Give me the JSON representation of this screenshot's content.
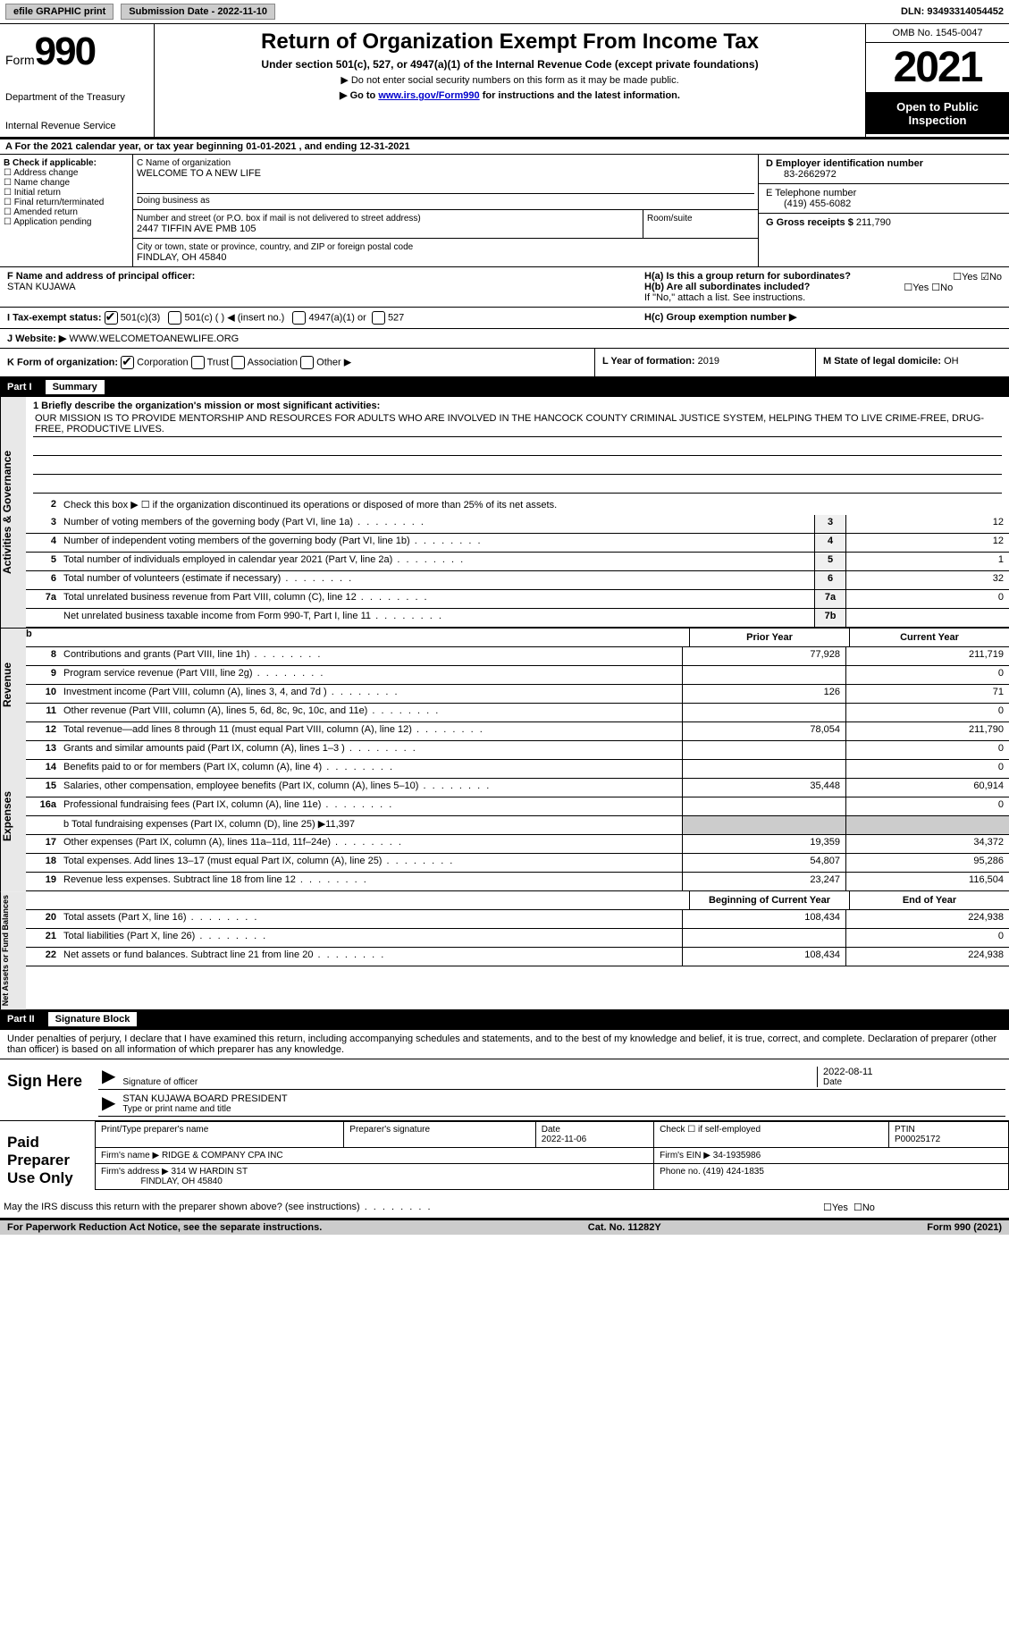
{
  "topbar": {
    "btn1": "efile GRAPHIC print",
    "sub_label": "Submission Date - 2022-11-10",
    "dln": "DLN: 93493314054452"
  },
  "header": {
    "form_prefix": "Form",
    "form_num": "990",
    "dept": "Department of the Treasury",
    "irs": "Internal Revenue Service",
    "title": "Return of Organization Exempt From Income Tax",
    "sub1": "Under section 501(c), 527, or 4947(a)(1) of the Internal Revenue Code (except private foundations)",
    "note1": "▶ Do not enter social security numbers on this form as it may be made public.",
    "note2_pre": "▶ Go to ",
    "note2_link": "www.irs.gov/Form990",
    "note2_post": " for instructions and the latest information.",
    "omb": "OMB No. 1545-0047",
    "year": "2021",
    "inspect1": "Open to Public",
    "inspect2": "Inspection"
  },
  "row_a": "A For the 2021 calendar year, or tax year beginning 01-01-2021    , and ending 12-31-2021",
  "col_b": {
    "header": "B Check if applicable:",
    "items": [
      "Address change",
      "Name change",
      "Initial return",
      "Final return/terminated",
      "Amended return",
      "Application pending"
    ]
  },
  "col_c": {
    "name_label": "C Name of organization",
    "name": "WELCOME TO A NEW LIFE",
    "dba": "Doing business as",
    "street_label": "Number and street (or P.O. box if mail is not delivered to street address)",
    "street": "2447 TIFFIN AVE PMB 105",
    "room_label": "Room/suite",
    "city_label": "City or town, state or province, country, and ZIP or foreign postal code",
    "city": "FINDLAY, OH  45840"
  },
  "col_d": {
    "ein_label": "D Employer identification number",
    "ein": "83-2662972",
    "phone_label": "E Telephone number",
    "phone": "(419) 455-6082",
    "gross_label": "G Gross receipts $",
    "gross": "211,790"
  },
  "row_f": {
    "label": "F Name and address of principal officer:",
    "name": "STAN KUJAWA"
  },
  "row_h": {
    "ha": "H(a)  Is this a group return for subordinates?",
    "hb": "H(b)  Are all subordinates included?",
    "hb_note": "If \"No,\" attach a list. See instructions.",
    "hc": "H(c)  Group exemption number ▶",
    "yes": "Yes",
    "no": "No"
  },
  "row_i": {
    "label": "I    Tax-exempt status:",
    "opt1": "501(c)(3)",
    "opt2": "501(c) (  ) ◀ (insert no.)",
    "opt3": "4947(a)(1) or",
    "opt4": "527"
  },
  "row_j": {
    "label": "J   Website: ▶",
    "val": "WWW.WELCOMETOANEWLIFE.ORG"
  },
  "row_k": {
    "label": "K Form of organization:",
    "opts": [
      "Corporation",
      "Trust",
      "Association",
      "Other ▶"
    ]
  },
  "row_l": {
    "label": "L Year of formation:",
    "val": "2019"
  },
  "row_m": {
    "label": "M State of legal domicile:",
    "val": "OH"
  },
  "part1": {
    "tag": "Part I",
    "title": "Summary"
  },
  "summary": {
    "line1_label": "1   Briefly describe the organization's mission or most significant activities:",
    "mission": "OUR MISSION IS TO PROVIDE MENTORSHIP AND RESOURCES FOR ADULTS WHO ARE INVOLVED IN THE HANCOCK COUNTY CRIMINAL JUSTICE SYSTEM, HELPING THEM TO LIVE CRIME-FREE, DRUG-FREE, PRODUCTIVE LIVES.",
    "line2": "Check this box ▶ ☐ if the organization discontinued its operations or disposed of more than 25% of its net assets.",
    "lines": [
      {
        "n": "3",
        "d": "Number of voting members of the governing body (Part VI, line 1a)",
        "b": "3",
        "v": "12"
      },
      {
        "n": "4",
        "d": "Number of independent voting members of the governing body (Part VI, line 1b)",
        "b": "4",
        "v": "12"
      },
      {
        "n": "5",
        "d": "Total number of individuals employed in calendar year 2021 (Part V, line 2a)",
        "b": "5",
        "v": "1"
      },
      {
        "n": "6",
        "d": "Total number of volunteers (estimate if necessary)",
        "b": "6",
        "v": "32"
      },
      {
        "n": "7a",
        "d": "Total unrelated business revenue from Part VIII, column (C), line 12",
        "b": "7a",
        "v": "0"
      },
      {
        "n": "",
        "d": "Net unrelated business taxable income from Form 990-T, Part I, line 11",
        "b": "7b",
        "v": ""
      }
    ]
  },
  "revenue": {
    "side": "Revenue",
    "hdr_prior": "Prior Year",
    "hdr_curr": "Current Year",
    "lines": [
      {
        "n": "8",
        "d": "Contributions and grants (Part VIII, line 1h)",
        "p": "77,928",
        "c": "211,719"
      },
      {
        "n": "9",
        "d": "Program service revenue (Part VIII, line 2g)",
        "p": "",
        "c": "0"
      },
      {
        "n": "10",
        "d": "Investment income (Part VIII, column (A), lines 3, 4, and 7d )",
        "p": "126",
        "c": "71"
      },
      {
        "n": "11",
        "d": "Other revenue (Part VIII, column (A), lines 5, 6d, 8c, 9c, 10c, and 11e)",
        "p": "",
        "c": "0"
      },
      {
        "n": "12",
        "d": "Total revenue—add lines 8 through 11 (must equal Part VIII, column (A), line 12)",
        "p": "78,054",
        "c": "211,790"
      }
    ]
  },
  "activities_side": "Activities & Governance",
  "expenses": {
    "side": "Expenses",
    "lines": [
      {
        "n": "13",
        "d": "Grants and similar amounts paid (Part IX, column (A), lines 1–3 )",
        "p": "",
        "c": "0"
      },
      {
        "n": "14",
        "d": "Benefits paid to or for members (Part IX, column (A), line 4)",
        "p": "",
        "c": "0"
      },
      {
        "n": "15",
        "d": "Salaries, other compensation, employee benefits (Part IX, column (A), lines 5–10)",
        "p": "35,448",
        "c": "60,914"
      },
      {
        "n": "16a",
        "d": "Professional fundraising fees (Part IX, column (A), line 11e)",
        "p": "",
        "c": "0"
      }
    ],
    "line_b": "b  Total fundraising expenses (Part IX, column (D), line 25) ▶11,397",
    "lines2": [
      {
        "n": "17",
        "d": "Other expenses (Part IX, column (A), lines 11a–11d, 11f–24e)",
        "p": "19,359",
        "c": "34,372"
      },
      {
        "n": "18",
        "d": "Total expenses. Add lines 13–17 (must equal Part IX, column (A), line 25)",
        "p": "54,807",
        "c": "95,286"
      },
      {
        "n": "19",
        "d": "Revenue less expenses. Subtract line 18 from line 12",
        "p": "23,247",
        "c": "116,504"
      }
    ]
  },
  "netassets": {
    "side": "Net Assets or Fund Balances",
    "hdr_beg": "Beginning of Current Year",
    "hdr_end": "End of Year",
    "lines": [
      {
        "n": "20",
        "d": "Total assets (Part X, line 16)",
        "p": "108,434",
        "c": "224,938"
      },
      {
        "n": "21",
        "d": "Total liabilities (Part X, line 26)",
        "p": "",
        "c": "0"
      },
      {
        "n": "22",
        "d": "Net assets or fund balances. Subtract line 21 from line 20",
        "p": "108,434",
        "c": "224,938"
      }
    ]
  },
  "part2": {
    "tag": "Part II",
    "title": "Signature Block"
  },
  "sig": {
    "declaration": "Under penalties of perjury, I declare that I have examined this return, including accompanying schedules and statements, and to the best of my knowledge and belief, it is true, correct, and complete. Declaration of preparer (other than officer) is based on all information of which preparer has any knowledge.",
    "sign_here": "Sign Here",
    "sig_officer": "Signature of officer",
    "date": "Date",
    "date_val": "2022-08-11",
    "name_title": "STAN KUJAWA  BOARD PRESIDENT",
    "type_name": "Type or print name and title"
  },
  "preparer": {
    "side": "Paid Preparer Use Only",
    "col1": "Print/Type preparer's name",
    "col2": "Preparer's signature",
    "col3_label": "Date",
    "col3_val": "2022-11-06",
    "col4": "Check ☐ if self-employed",
    "col5_label": "PTIN",
    "col5_val": "P00025172",
    "firm_label": "Firm's name    ▶",
    "firm": "RIDGE & COMPANY CPA INC",
    "ein_label": "Firm's EIN ▶",
    "ein": "34-1935986",
    "addr_label": "Firm's address ▶",
    "addr1": "314 W HARDIN ST",
    "addr2": "FINDLAY, OH  45840",
    "phone_label": "Phone no.",
    "phone": "(419) 424-1835"
  },
  "may_irs": "May the IRS discuss this return with the preparer shown above? (see instructions)",
  "footer": {
    "left": "For Paperwork Reduction Act Notice, see the separate instructions.",
    "mid": "Cat. No. 11282Y",
    "right": "Form 990 (2021)"
  }
}
